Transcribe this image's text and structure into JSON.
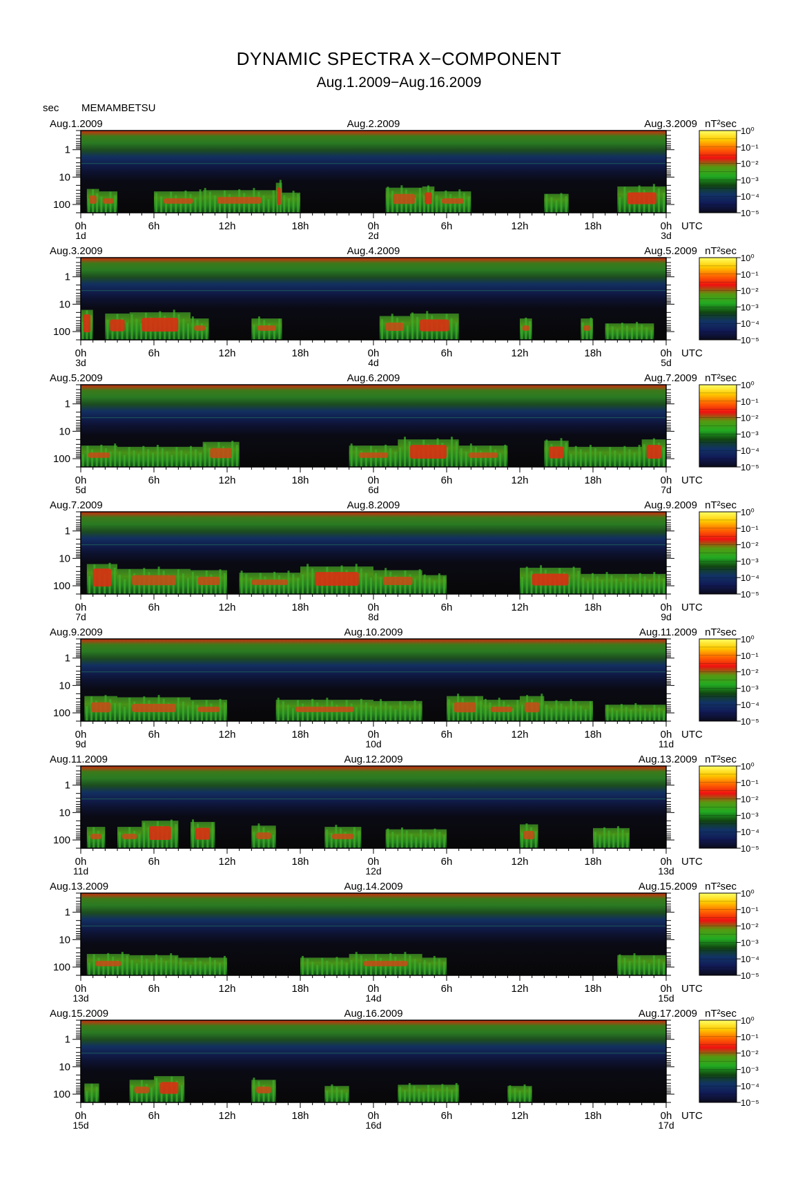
{
  "header": {
    "title": "DYNAMIC SPECTRA X−COMPONENT",
    "subtitle": "Aug.1.2009−Aug.16.2009",
    "y_unit": "sec",
    "station": "MEMAMBETSU"
  },
  "chart_data": {
    "type": "heatmap",
    "title": "DYNAMIC SPECTRA X−COMPONENT",
    "subtitle": "Aug.1.2009−Aug.16.2009",
    "ylabel": "sec",
    "xlabel": "UTC",
    "y_scale": "log",
    "ylim": [
      0.2,
      200
    ],
    "y_ticks": [
      "1",
      "10",
      "100"
    ],
    "x_tick_labels": [
      "0h",
      "6h",
      "12h",
      "18h",
      "0h",
      "6h",
      "12h",
      "18h",
      "0h"
    ],
    "x_unit": "UTC",
    "colorbar": {
      "unit": "nT²sec",
      "labels": [
        "10⁰",
        "10⁻¹",
        "10⁻²",
        "10⁻³",
        "10⁻⁴",
        "10⁻⁵"
      ],
      "colors": [
        "#ffff66",
        "#ffcc00",
        "#ff6600",
        "#ee1111",
        "#559911",
        "#22aa22",
        "#114411",
        "#113366",
        "#111a55",
        "#0b0b1a"
      ]
    },
    "panels": [
      {
        "start_date": "Aug.1.2009",
        "mid_date": "Aug.2.2009",
        "end_date": "Aug.3.2009",
        "day_labels": [
          "1d",
          "2d",
          "3d"
        ],
        "events": [
          [
            0.5,
            1.5,
            0.7
          ],
          [
            1.5,
            3,
            0.6
          ],
          [
            6,
            10,
            0.6
          ],
          [
            10,
            16,
            0.65
          ],
          [
            16,
            16.5,
            0.95
          ],
          [
            16.5,
            18,
            0.55
          ],
          [
            25,
            28,
            0.75
          ],
          [
            28,
            29,
            0.8
          ],
          [
            29,
            32,
            0.6
          ],
          [
            38,
            40,
            0.5
          ],
          [
            44,
            48,
            0.8
          ]
        ]
      },
      {
        "start_date": "Aug.3.2009",
        "mid_date": "Aug.4.2009",
        "end_date": "Aug.5.2009",
        "day_labels": [
          "3d",
          "4d",
          "5d"
        ],
        "events": [
          [
            0,
            1,
            0.95
          ],
          [
            2,
            4,
            0.8
          ],
          [
            4,
            9,
            0.85
          ],
          [
            9,
            10.5,
            0.6
          ],
          [
            14,
            16.5,
            0.6
          ],
          [
            24.5,
            27,
            0.7
          ],
          [
            27,
            31,
            0.8
          ],
          [
            36,
            37,
            0.6
          ],
          [
            41,
            42,
            0.6
          ],
          [
            43,
            47,
            0.4
          ]
        ]
      },
      {
        "start_date": "Aug.5.2009",
        "mid_date": "Aug.6.2009",
        "end_date": "Aug.7.2009",
        "day_labels": [
          "5d",
          "6d",
          "7d"
        ],
        "events": [
          [
            0,
            3,
            0.6
          ],
          [
            3,
            10,
            0.55
          ],
          [
            10,
            13,
            0.75
          ],
          [
            22,
            26,
            0.6
          ],
          [
            26,
            31,
            0.85
          ],
          [
            31,
            35,
            0.6
          ],
          [
            38,
            40,
            0.8
          ],
          [
            40,
            46,
            0.55
          ],
          [
            46,
            48,
            0.85
          ]
        ]
      },
      {
        "start_date": "Aug.7.2009",
        "mid_date": "Aug.8.2009",
        "end_date": "Aug.9.2009",
        "day_labels": [
          "7d",
          "8d",
          "9d"
        ],
        "events": [
          [
            0.5,
            3,
            0.95
          ],
          [
            3,
            9,
            0.75
          ],
          [
            9,
            12,
            0.7
          ],
          [
            13,
            18,
            0.6
          ],
          [
            18,
            24,
            0.85
          ],
          [
            24,
            28,
            0.7
          ],
          [
            28,
            30,
            0.5
          ],
          [
            36,
            41,
            0.8
          ],
          [
            41,
            48,
            0.55
          ]
        ]
      },
      {
        "start_date": "Aug.9.2009",
        "mid_date": "Aug.10.2009",
        "end_date": "Aug.11.2009",
        "day_labels": [
          "9d",
          "10d",
          "11d"
        ],
        "events": [
          [
            0.3,
            3,
            0.75
          ],
          [
            3,
            9,
            0.7
          ],
          [
            9,
            12,
            0.6
          ],
          [
            16,
            24,
            0.6
          ],
          [
            24,
            28,
            0.55
          ],
          [
            30,
            33,
            0.75
          ],
          [
            33,
            36,
            0.6
          ],
          [
            36,
            38,
            0.75
          ],
          [
            38,
            42,
            0.55
          ],
          [
            43,
            48,
            0.4
          ]
        ]
      },
      {
        "start_date": "Aug.11.2009",
        "mid_date": "Aug.12.2009",
        "end_date": "Aug.13.2009",
        "day_labels": [
          "11d",
          "12d",
          "13d"
        ],
        "events": [
          [
            0.5,
            2,
            0.6
          ],
          [
            3,
            5,
            0.6
          ],
          [
            5,
            8,
            0.85
          ],
          [
            9,
            11,
            0.8
          ],
          [
            14,
            16,
            0.65
          ],
          [
            20,
            23,
            0.6
          ],
          [
            25,
            30,
            0.5
          ],
          [
            36,
            37.5,
            0.7
          ],
          [
            42,
            45,
            0.55
          ]
        ]
      },
      {
        "start_date": "Aug.13.2009",
        "mid_date": "Aug.14.2009",
        "end_date": "Aug.15.2009",
        "day_labels": [
          "13d",
          "14d",
          "15d"
        ],
        "events": [
          [
            0.5,
            4,
            0.6
          ],
          [
            4,
            8,
            0.55
          ],
          [
            8,
            12,
            0.45
          ],
          [
            18,
            22,
            0.45
          ],
          [
            22,
            28,
            0.6
          ],
          [
            28,
            30,
            0.45
          ],
          [
            44,
            48,
            0.55
          ]
        ]
      },
      {
        "start_date": "Aug.15.2009",
        "mid_date": "Aug.16.2009",
        "end_date": "Aug.17.2009",
        "day_labels": [
          "15d",
          "16d",
          "17d"
        ],
        "events": [
          [
            0.3,
            1.5,
            0.5
          ],
          [
            4,
            6,
            0.65
          ],
          [
            6,
            8.5,
            0.8
          ],
          [
            14,
            16,
            0.65
          ],
          [
            20,
            22,
            0.4
          ],
          [
            26,
            31,
            0.45
          ],
          [
            35,
            37,
            0.4
          ]
        ]
      }
    ]
  }
}
